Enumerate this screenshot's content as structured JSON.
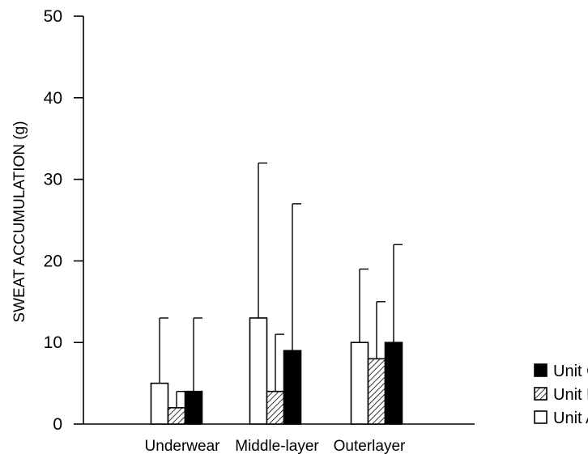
{
  "chart_data": {
    "type": "bar",
    "title": "",
    "xlabel": "",
    "ylabel": "SWEAT ACCUMULATION (g)",
    "ylim": [
      0,
      50
    ],
    "yticks": [
      0,
      10,
      20,
      30,
      40,
      50
    ],
    "categories": [
      "Underwear",
      "Middle-layer",
      "Outerlayer"
    ],
    "series": [
      {
        "name": "Unit A",
        "values": [
          5,
          13,
          10
        ],
        "errors": [
          8,
          19,
          9
        ],
        "fill": "white"
      },
      {
        "name": "Unit B",
        "values": [
          2,
          4,
          8
        ],
        "errors": [
          2,
          7,
          7
        ],
        "fill": "hatched"
      },
      {
        "name": "Unit C",
        "values": [
          4,
          9,
          10
        ],
        "errors": [
          9,
          18,
          12
        ],
        "fill": "black"
      }
    ],
    "legend": {
      "placement": "right",
      "order": [
        "Unit C",
        "Unit B",
        "Unit A"
      ]
    },
    "grid": false,
    "colors": {
      "ink": "#000000",
      "background": "#ffffff"
    }
  }
}
